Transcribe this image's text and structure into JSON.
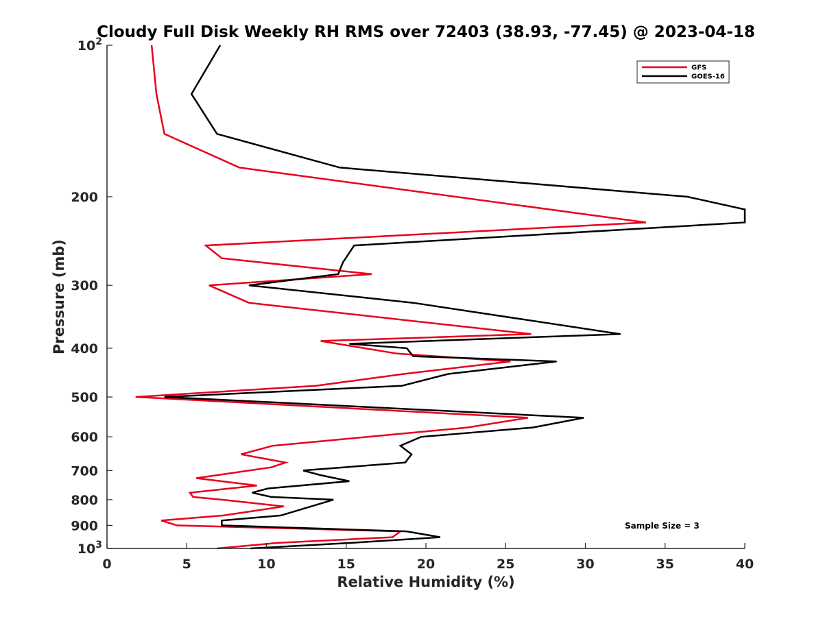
{
  "chart_data": {
    "type": "line",
    "title": "Cloudy Full Disk Weekly RH RMS over 72403 (38.93, -77.45) @ 2023-04-18",
    "xlabel": "Relative Humidity (%)",
    "ylabel": "Pressure (mb)",
    "xlim": [
      0,
      40
    ],
    "ylim": [
      100,
      1000
    ],
    "yscale": "log",
    "y_reversed": true,
    "grid": false,
    "legend_position": "top-right",
    "x_ticks": [
      "0",
      "5",
      "10",
      "15",
      "20",
      "25",
      "30",
      "35",
      "40"
    ],
    "y_ticks": [
      {
        "value": 100,
        "base": "10",
        "exp": "2"
      },
      {
        "value": 200,
        "label": "200"
      },
      {
        "value": 300,
        "label": "300"
      },
      {
        "value": 400,
        "label": "400"
      },
      {
        "value": 500,
        "label": "500"
      },
      {
        "value": 600,
        "label": "600"
      },
      {
        "value": 700,
        "label": "700"
      },
      {
        "value": 800,
        "label": "800"
      },
      {
        "value": 900,
        "label": "900"
      },
      {
        "value": 1000,
        "base": "10",
        "exp": "3"
      }
    ],
    "series": [
      {
        "name": "GFS",
        "color": "#e8001c",
        "points": [
          [
            2.8,
            100
          ],
          [
            3.1,
            125
          ],
          [
            3.6,
            150
          ],
          [
            8.3,
            175
          ],
          [
            33.8,
            225
          ],
          [
            6.2,
            250
          ],
          [
            7.2,
            265
          ],
          [
            16.6,
            285
          ],
          [
            6.4,
            300
          ],
          [
            8.9,
            325
          ],
          [
            26.6,
            375
          ],
          [
            13.4,
            387
          ],
          [
            18.2,
            410
          ],
          [
            25.3,
            425
          ],
          [
            18.6,
            450
          ],
          [
            13.1,
            475
          ],
          [
            1.8,
            500
          ],
          [
            26.4,
            550
          ],
          [
            22.6,
            575
          ],
          [
            10.4,
            625
          ],
          [
            8.4,
            650
          ],
          [
            11.2,
            675
          ],
          [
            10.3,
            690
          ],
          [
            6.9,
            715
          ],
          [
            5.6,
            725
          ],
          [
            9.4,
            750
          ],
          [
            5.2,
            775
          ],
          [
            5.4,
            790
          ],
          [
            7.2,
            800
          ],
          [
            11.1,
            825
          ],
          [
            7.3,
            860
          ],
          [
            3.4,
            880
          ],
          [
            4.4,
            900
          ],
          [
            18.4,
            925
          ],
          [
            17.9,
            950
          ],
          [
            10.7,
            975
          ],
          [
            6.9,
            1000
          ]
        ]
      },
      {
        "name": "GOES-16",
        "color": "#000000",
        "points": [
          [
            7.1,
            100
          ],
          [
            5.3,
            125
          ],
          [
            6.9,
            150
          ],
          [
            14.6,
            175
          ],
          [
            36.4,
            200
          ],
          [
            40.0,
            212
          ],
          [
            40.0,
            225
          ],
          [
            15.5,
            250
          ],
          [
            14.8,
            270
          ],
          [
            14.5,
            285
          ],
          [
            8.9,
            300
          ],
          [
            19.2,
            325
          ],
          [
            32.2,
            375
          ],
          [
            15.2,
            392
          ],
          [
            18.8,
            400
          ],
          [
            19.2,
            415
          ],
          [
            28.2,
            425
          ],
          [
            21.4,
            450
          ],
          [
            18.5,
            475
          ],
          [
            3.6,
            500
          ],
          [
            29.9,
            550
          ],
          [
            26.7,
            575
          ],
          [
            19.7,
            600
          ],
          [
            18.4,
            625
          ],
          [
            19.1,
            650
          ],
          [
            18.7,
            675
          ],
          [
            12.3,
            700
          ],
          [
            13.4,
            715
          ],
          [
            15.2,
            735
          ],
          [
            10.1,
            760
          ],
          [
            9.1,
            775
          ],
          [
            10.3,
            790
          ],
          [
            14.2,
            800
          ],
          [
            12.8,
            825
          ],
          [
            10.9,
            860
          ],
          [
            7.2,
            880
          ],
          [
            7.2,
            900
          ],
          [
            18.8,
            925
          ],
          [
            20.9,
            950
          ],
          [
            15.3,
            975
          ],
          [
            9.0,
            1000
          ]
        ]
      }
    ],
    "annotation": "Sample Size = 3"
  }
}
